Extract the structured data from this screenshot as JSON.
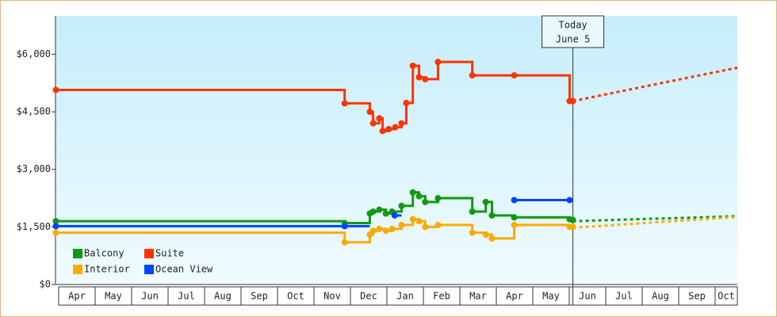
{
  "chart_data": {
    "type": "step-line",
    "categories": [
      "Apr",
      "May",
      "Jun",
      "Jul",
      "Aug",
      "Sep",
      "Oct",
      "Nov",
      "Dec",
      "Jan",
      "Feb",
      "Mar",
      "Apr",
      "May",
      "Jun",
      "Jul",
      "Aug",
      "Sep",
      "Oct"
    ],
    "xlim": [
      -0.1,
      18.6
    ],
    "ylim": [
      0,
      7000
    ],
    "yticks": [
      {
        "value": 0,
        "label": "$0"
      },
      {
        "value": 1500,
        "label": "$1,500"
      },
      {
        "value": 3000,
        "label": "$3,000"
      },
      {
        "value": 4500,
        "label": "$4,500"
      },
      {
        "value": 6000,
        "label": "$6,000"
      }
    ],
    "today": {
      "x": 14.09,
      "label": "Today",
      "date": "June 5"
    },
    "legend": "bottom-left",
    "series": [
      {
        "name": "Balcony",
        "color": "#119911",
        "x": [
          -0.09,
          7.83,
          8.52,
          8.61,
          8.78,
          8.96,
          9.13,
          9.39,
          9.7,
          9.87,
          10.04,
          10.39,
          11.33,
          11.7,
          11.87,
          12.48,
          14.0,
          14.09
        ],
        "values": [
          1650,
          1600,
          1850,
          1900,
          1950,
          1850,
          1900,
          2050,
          2400,
          2300,
          2150,
          2250,
          1900,
          2150,
          1800,
          1750,
          1700,
          1680
        ],
        "forecast": {
          "x": [
            14.09,
            18.6
          ],
          "values": [
            1650,
            1780
          ]
        }
      },
      {
        "name": "Suite",
        "color": "#ff3300",
        "x": [
          -0.09,
          7.83,
          8.52,
          8.61,
          8.78,
          8.87,
          9.04,
          9.22,
          9.39,
          9.52,
          9.7,
          9.87,
          10.04,
          10.39,
          11.33,
          12.48,
          14.0,
          14.09
        ],
        "values": [
          5070,
          4720,
          4500,
          4200,
          4330,
          4000,
          4050,
          4100,
          4200,
          4730,
          5700,
          5400,
          5350,
          5800,
          5450,
          5450,
          4780,
          4780
        ],
        "forecast": {
          "x": [
            14.09,
            18.6
          ],
          "values": [
            4780,
            5650
          ]
        }
      },
      {
        "name": "Interior",
        "color": "#ffaa00",
        "x": [
          -0.09,
          7.83,
          8.52,
          8.61,
          8.78,
          8.96,
          9.13,
          9.39,
          9.7,
          9.87,
          10.04,
          10.39,
          11.33,
          11.7,
          11.87,
          12.48,
          14.0,
          14.09
        ],
        "values": [
          1350,
          1100,
          1300,
          1400,
          1450,
          1400,
          1450,
          1550,
          1700,
          1650,
          1500,
          1550,
          1350,
          1300,
          1200,
          1550,
          1500,
          1500
        ],
        "forecast": {
          "x": [
            14.09,
            18.6
          ],
          "values": [
            1480,
            1760
          ]
        }
      },
      {
        "name": "Ocean View",
        "color": "#0044ff",
        "x": [
          -0.09,
          7.83,
          8.52,
          9.2,
          9.39,
          12.48,
          14.0
        ],
        "values": [
          1520,
          1520,
          null,
          1800,
          null,
          2200,
          2200
        ]
      }
    ]
  }
}
